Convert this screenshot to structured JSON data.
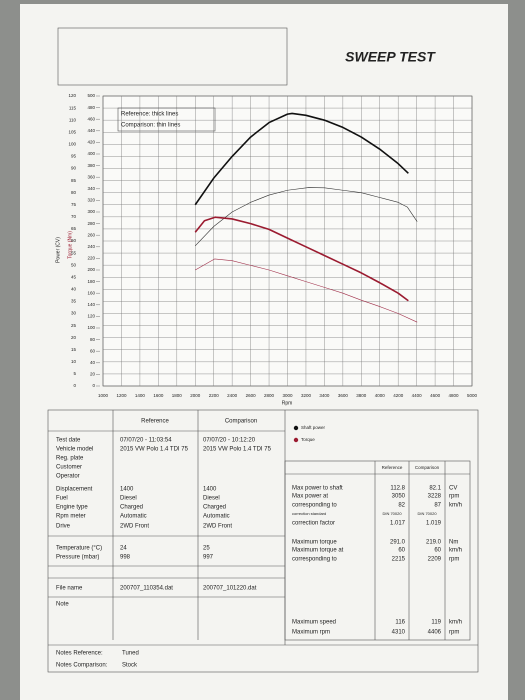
{
  "chart_data": {
    "type": "line",
    "title": "SWEEP TEST",
    "ylabel": "Power (CV)",
    "y2label": "Torque (Nm)",
    "xlabel": "Rpm",
    "annotations": [
      "Reference: thick lines",
      "Comparison: thin lines"
    ],
    "xlim": [
      1000,
      5000
    ],
    "xticks": [
      1000,
      1200,
      1400,
      1600,
      1800,
      2000,
      2200,
      2400,
      2600,
      2800,
      3000,
      3200,
      3400,
      3600,
      3800,
      4000,
      4200,
      4400,
      4600,
      4800,
      5000
    ],
    "ylim": [
      0,
      120
    ],
    "yticks": [
      0,
      5,
      10,
      15,
      20,
      25,
      30,
      35,
      40,
      45,
      50,
      55,
      60,
      65,
      70,
      75,
      80,
      85,
      90,
      95,
      100,
      105,
      110,
      115,
      120
    ],
    "y2lim": [
      0,
      500
    ],
    "y2ticks": [
      0,
      20,
      40,
      60,
      80,
      100,
      120,
      140,
      160,
      180,
      200,
      220,
      240,
      260,
      280,
      300,
      320,
      340,
      360,
      380,
      400,
      420,
      440,
      460,
      480,
      500
    ],
    "grid": true,
    "series": [
      {
        "name": "Shaft power",
        "color": "#111111",
        "width": 1.6,
        "x": [
          2000,
          2200,
          2400,
          2600,
          2800,
          3000,
          3050,
          3200,
          3400,
          3600,
          3800,
          4000,
          4200,
          4310
        ],
        "values": [
          75,
          86,
          95,
          103,
          109,
          112.5,
          112.8,
          112,
          110,
          107,
          103,
          98,
          92,
          88
        ]
      },
      {
        "color": "#333333",
        "width": 0.6,
        "x": [
          2000,
          2200,
          2400,
          2600,
          2800,
          3000,
          3228,
          3400,
          3600,
          3800,
          4000,
          4200,
          4300,
          4406
        ],
        "values": [
          58,
          66,
          72,
          76,
          79,
          81,
          82.1,
          82,
          81,
          80,
          78,
          76,
          74,
          68
        ]
      },
      {
        "name": "Torque",
        "color": "#9b1b30",
        "width": 1.6,
        "axis": "y2",
        "x": [
          2000,
          2100,
          2215,
          2400,
          2600,
          2800,
          3000,
          3200,
          3400,
          3600,
          3800,
          4000,
          4200,
          4310
        ],
        "values": [
          265,
          285,
          291,
          288,
          280,
          270,
          255,
          240,
          225,
          210,
          195,
          178,
          160,
          147
        ]
      },
      {
        "color": "#a0304a",
        "width": 0.6,
        "axis": "y2",
        "x": [
          2000,
          2209,
          2400,
          2600,
          2800,
          3000,
          3200,
          3400,
          3600,
          3800,
          4000,
          4200,
          4406
        ],
        "values": [
          200,
          219,
          216,
          208,
          200,
          190,
          180,
          170,
          160,
          148,
          137,
          125,
          110
        ]
      }
    ]
  },
  "document": {
    "left_table": {
      "headers": [
        "Reference",
        "Comparison"
      ],
      "rows": [
        {
          "label": "Test date",
          "ref": "07/07/20 - 11:03:54",
          "comp": "07/07/20 - 10:12:20"
        },
        {
          "label": "Vehicle model",
          "ref": "2015 VW Polo 1.4 TDI 75",
          "comp": "2015 VW Polo 1.4 TDI 75"
        },
        {
          "label": "Reg. plate"
        },
        {
          "label": "Customer"
        },
        {
          "label": "Operator"
        },
        {
          "label": "Displacement",
          "ref": "1400",
          "comp": "1400"
        },
        {
          "label": "Fuel",
          "ref": "Diesel",
          "comp": "Diesel"
        },
        {
          "label": "Engine type",
          "ref": "Charged",
          "comp": "Charged"
        },
        {
          "label": "Rpm meter",
          "ref": "Automatic",
          "comp": "Automatic"
        },
        {
          "label": "Drive",
          "ref": "2WD Front",
          "comp": "2WD Front"
        },
        {
          "label": "Temperature (°C)",
          "ref": "24",
          "comp": "25"
        },
        {
          "label": "Pressure (mbar)",
          "ref": "998",
          "comp": "997"
        },
        {
          "label": "File name",
          "ref": "200707_110354.dat",
          "comp": "200707_101220.dat"
        },
        {
          "label": "Note"
        }
      ]
    },
    "right_table": {
      "headers": [
        "Reference",
        "Comparison"
      ],
      "rows": [
        {
          "label": "Max power to shaft",
          "ref": "112.8",
          "comp": "82.1",
          "unit": "CV"
        },
        {
          "label": "Max power at",
          "ref": "3050",
          "comp": "3228",
          "unit": "rpm"
        },
        {
          "label": "corresponding to",
          "ref": "82",
          "comp": "87",
          "unit": "km/h"
        },
        {
          "label": "correction standard",
          "ref": "DIN 70020",
          "comp": "DIN 70020"
        },
        {
          "label": "correction factor",
          "ref": "1.017",
          "comp": "1.019"
        },
        {
          "label": "Maximum torque",
          "ref": "291.0",
          "comp": "219.0",
          "unit": "Nm"
        },
        {
          "label": "Maximum torque at",
          "ref": "60",
          "comp": "60",
          "unit": "km/h"
        },
        {
          "label": "corresponding to",
          "ref": "2215",
          "comp": "2209",
          "unit": "rpm"
        },
        {
          "label": "Maximum speed",
          "ref": "116",
          "comp": "119",
          "unit": "km/h"
        },
        {
          "label": "Maximum rpm",
          "ref": "4310",
          "comp": "4406",
          "unit": "rpm"
        }
      ]
    },
    "notes": [
      {
        "label": "Notes Reference:",
        "value": "Tuned"
      },
      {
        "label": "Notes Comparison:",
        "value": "Stock"
      }
    ]
  }
}
